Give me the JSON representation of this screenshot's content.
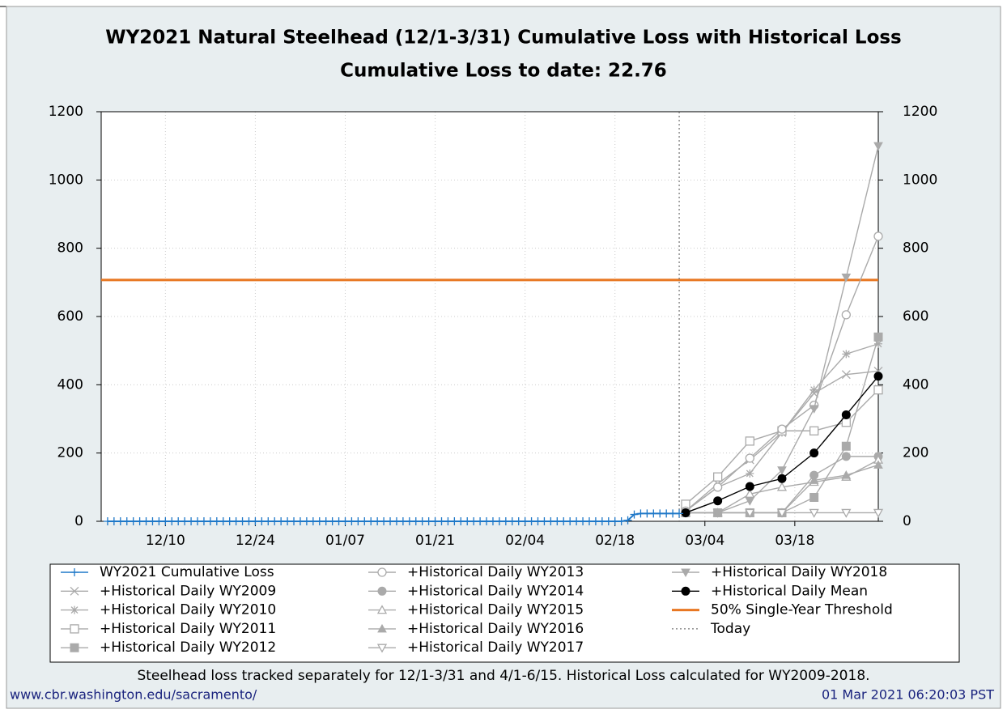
{
  "chart_data": {
    "type": "line",
    "title": "WY2021 Natural Steelhead (12/1-3/31) Cumulative Loss with Historical Loss",
    "subtitle": "Cumulative Loss to date: 22.76",
    "xlim": [
      "11/30",
      "03/31"
    ],
    "xticks": [
      "12/10",
      "12/24",
      "01/07",
      "01/21",
      "02/04",
      "02/18",
      "03/04",
      "03/18"
    ],
    "ylim": [
      0,
      1200
    ],
    "yticks": [
      0,
      200,
      400,
      600,
      800,
      1000,
      1200
    ],
    "grid": true,
    "series": [
      {
        "name": "WY2021 Cumulative Loss",
        "color": "#1f78c8",
        "marker": "plus",
        "x": [
          "12/01",
          "12/02",
          "12/03",
          "12/04",
          "12/05",
          "12/06",
          "12/07",
          "12/08",
          "12/09",
          "12/10",
          "12/11",
          "12/12",
          "12/13",
          "12/14",
          "12/15",
          "12/16",
          "12/17",
          "12/18",
          "12/19",
          "12/20",
          "12/21",
          "12/22",
          "12/23",
          "12/24",
          "12/25",
          "12/26",
          "12/27",
          "12/28",
          "12/29",
          "12/30",
          "12/31",
          "01/01",
          "01/02",
          "01/03",
          "01/04",
          "01/05",
          "01/06",
          "01/07",
          "01/08",
          "01/09",
          "01/10",
          "01/11",
          "01/12",
          "01/13",
          "01/14",
          "01/15",
          "01/16",
          "01/17",
          "01/18",
          "01/19",
          "01/20",
          "01/21",
          "01/22",
          "01/23",
          "01/24",
          "01/25",
          "01/26",
          "01/27",
          "01/28",
          "01/29",
          "01/30",
          "01/31",
          "02/01",
          "02/02",
          "02/03",
          "02/04",
          "02/05",
          "02/06",
          "02/07",
          "02/08",
          "02/09",
          "02/10",
          "02/11",
          "02/12",
          "02/13",
          "02/14",
          "02/15",
          "02/16",
          "02/17",
          "02/18",
          "02/19",
          "02/20",
          "02/21",
          "02/22",
          "02/23",
          "02/24",
          "02/25",
          "02/26",
          "02/27",
          "02/28"
        ],
        "values": [
          0,
          0,
          0,
          0,
          0,
          0,
          0,
          0,
          0,
          0,
          0,
          0,
          0,
          0,
          0,
          0,
          0,
          0,
          0,
          0,
          0,
          0,
          0,
          0,
          0,
          0,
          0,
          0,
          0,
          0,
          0,
          0,
          0,
          0,
          0,
          0,
          0,
          0,
          0,
          0,
          0,
          0,
          0,
          0,
          0,
          0,
          0,
          0,
          0,
          0,
          0,
          0,
          0,
          0,
          0,
          0,
          0,
          0,
          0,
          0,
          0,
          0,
          0,
          0,
          0,
          0,
          0,
          0,
          0,
          0,
          0,
          0,
          0,
          0,
          0,
          0,
          0,
          0,
          0,
          0,
          0,
          3,
          20,
          22.76,
          22.76,
          22.76,
          22.76,
          22.76,
          22.76,
          22.76
        ]
      },
      {
        "name": "+Historical Daily WY2009",
        "color": "#aaaaaa",
        "marker": "x",
        "x": [
          "03/01",
          "03/06",
          "03/11",
          "03/16",
          "03/21",
          "03/26",
          "03/31"
        ],
        "values": [
          30,
          110,
          180,
          260,
          375,
          430,
          440
        ]
      },
      {
        "name": "+Historical Daily WY2010",
        "color": "#aaaaaa",
        "marker": "asterisk",
        "x": [
          "03/01",
          "03/06",
          "03/11",
          "03/16",
          "03/21",
          "03/26",
          "03/31"
        ],
        "values": [
          30,
          100,
          140,
          260,
          385,
          490,
          520
        ]
      },
      {
        "name": "+Historical Daily WY2011",
        "color": "#aaaaaa",
        "marker": "square-open",
        "x": [
          "03/01",
          "03/06",
          "03/11",
          "03/16",
          "03/21",
          "03/26",
          "03/31"
        ],
        "values": [
          50,
          130,
          235,
          265,
          265,
          290,
          385
        ]
      },
      {
        "name": "+Historical Daily WY2012",
        "color": "#aaaaaa",
        "marker": "square",
        "x": [
          "03/01",
          "03/06",
          "03/11",
          "03/16",
          "03/21",
          "03/26",
          "03/31"
        ],
        "values": [
          25,
          25,
          25,
          25,
          70,
          220,
          540
        ]
      },
      {
        "name": "+Historical Daily WY2013",
        "color": "#aaaaaa",
        "marker": "circle-open",
        "x": [
          "03/01",
          "03/06",
          "03/11",
          "03/16",
          "03/21",
          "03/26",
          "03/31"
        ],
        "values": [
          30,
          100,
          185,
          270,
          340,
          605,
          835
        ]
      },
      {
        "name": "+Historical Daily WY2014",
        "color": "#aaaaaa",
        "marker": "circle",
        "x": [
          "03/01",
          "03/06",
          "03/11",
          "03/16",
          "03/21",
          "03/26",
          "03/31"
        ],
        "values": [
          25,
          25,
          25,
          25,
          135,
          190,
          190
        ]
      },
      {
        "name": "+Historical Daily WY2015",
        "color": "#aaaaaa",
        "marker": "triangle-up-open",
        "x": [
          "03/01",
          "03/06",
          "03/11",
          "03/16",
          "03/21",
          "03/26",
          "03/31"
        ],
        "values": [
          25,
          25,
          80,
          100,
          115,
          130,
          180
        ]
      },
      {
        "name": "+Historical Daily WY2016",
        "color": "#aaaaaa",
        "marker": "triangle-up",
        "x": [
          "03/01",
          "03/06",
          "03/11",
          "03/16",
          "03/21",
          "03/26",
          "03/31"
        ],
        "values": [
          25,
          25,
          25,
          25,
          120,
          135,
          165
        ]
      },
      {
        "name": "+Historical Daily WY2017",
        "color": "#aaaaaa",
        "marker": "triangle-down-open",
        "x": [
          "03/01",
          "03/06",
          "03/11",
          "03/16",
          "03/21",
          "03/26",
          "03/31"
        ],
        "values": [
          25,
          25,
          25,
          25,
          25,
          25,
          25
        ]
      },
      {
        "name": "+Historical Daily WY2018",
        "color": "#aaaaaa",
        "marker": "triangle-down",
        "x": [
          "03/01",
          "03/06",
          "03/11",
          "03/16",
          "03/21",
          "03/26",
          "03/31"
        ],
        "values": [
          25,
          25,
          60,
          150,
          330,
          715,
          1100
        ]
      },
      {
        "name": "+Historical Daily Mean",
        "color": "#000000",
        "marker": "circle",
        "x": [
          "03/01",
          "03/06",
          "03/11",
          "03/16",
          "03/21",
          "03/26",
          "03/31"
        ],
        "values": [
          25,
          60,
          102,
          125,
          200,
          312,
          425
        ]
      }
    ],
    "threshold": {
      "name": "50% Single-Year Threshold",
      "value": 707,
      "color": "#e87722"
    },
    "today": {
      "name": "Today",
      "x": "02/28",
      "color": "#555555"
    },
    "footnote": "Steelhead loss tracked separately for 12/1-3/31 and 4/1-6/15. Historical Loss calculated for WY2009-2018.",
    "source": "www.cbr.washington.edu/sacramento/",
    "timestamp": "01 Mar 2021 06:20:03 PST"
  }
}
